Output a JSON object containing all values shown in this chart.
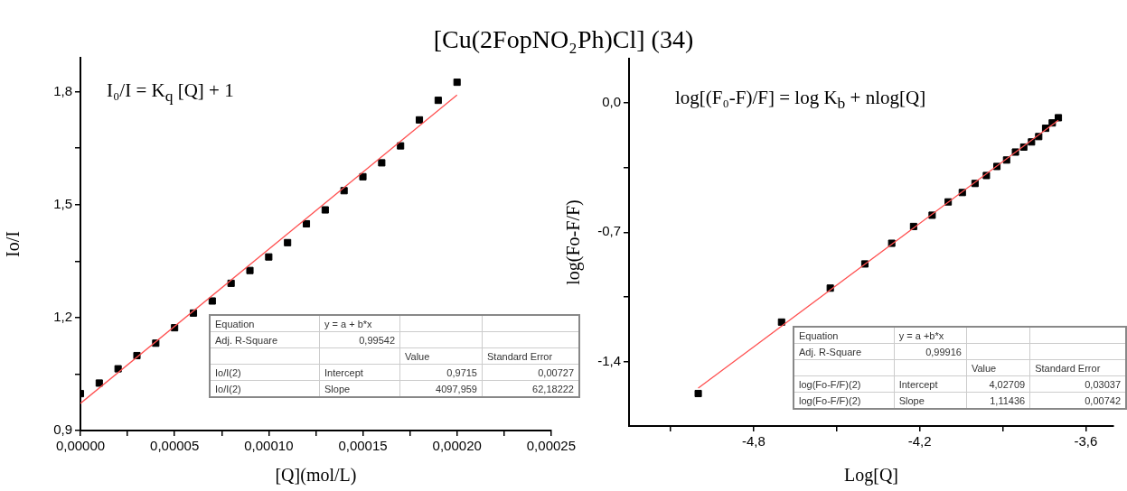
{
  "chart_data": [
    {
      "type": "scatter",
      "title": "[Cu(2FopNO₂Ph)Cl] (34)",
      "xlabel": "[Q](mol/L)",
      "ylabel": "Io/I",
      "marker": "square",
      "grid": false,
      "legend": false,
      "xlim": [
        0,
        0.00025
      ],
      "ylim": [
        0.9,
        1.89
      ],
      "xticks": [
        {
          "value": 0,
          "label": "0,00000"
        },
        {
          "value": 2.5e-05,
          "label": null
        },
        {
          "value": 5e-05,
          "label": "0,00005"
        },
        {
          "value": 7.5e-05,
          "label": null
        },
        {
          "value": 0.0001,
          "label": "0,00010"
        },
        {
          "value": 0.000125,
          "label": null
        },
        {
          "value": 0.00015,
          "label": "0,00015"
        },
        {
          "value": 0.000175,
          "label": null
        },
        {
          "value": 0.0002,
          "label": "0,00020"
        },
        {
          "value": 0.000225,
          "label": null
        },
        {
          "value": 0.00025,
          "label": "0,00025"
        }
      ],
      "yticks": [
        {
          "value": 0.9,
          "label": "0,9"
        },
        {
          "value": 1.05,
          "label": null
        },
        {
          "value": 1.2,
          "label": "1,2"
        },
        {
          "value": 1.35,
          "label": null
        },
        {
          "value": 1.5,
          "label": "1,5"
        },
        {
          "value": 1.65,
          "label": null
        },
        {
          "value": 1.8,
          "label": "1,8"
        }
      ],
      "series": [
        {
          "color": "#000000",
          "x": [
            0,
            1e-05,
            2e-05,
            3e-05,
            4e-05,
            5e-05,
            6e-05,
            7e-05,
            8e-05,
            9e-05,
            0.0001,
            0.00011,
            0.00012,
            0.00013,
            0.00014,
            0.00015,
            0.00016,
            0.00017,
            0.00018,
            0.00019,
            0.0002
          ],
          "values": [
            0.998,
            1.026,
            1.064,
            1.099,
            1.132,
            1.173,
            1.212,
            1.244,
            1.291,
            1.325,
            1.361,
            1.399,
            1.449,
            1.486,
            1.537,
            1.574,
            1.611,
            1.656,
            1.725,
            1.777,
            1.825
          ]
        },
        {
          "type": "line",
          "color": "#ff5050",
          "marker": "none",
          "x": [
            0,
            0.0002
          ],
          "values": [
            0.972,
            1.791
          ]
        }
      ],
      "annotations": [
        "I₀/I = K$_{q}$ [Q] + 1",
        "Equation",
        "y = a + b*x",
        "Adj. R-Square",
        "0,99542",
        "Value",
        "Standard Error",
        "Io/I(2)",
        "Intercept",
        "0,9715",
        "0,00727",
        "Io/I(2)",
        "Slope",
        "4097,959",
        "62,18222"
      ]
    },
    {
      "type": "scatter",
      "xlabel": "Log[Q]",
      "ylabel": "log(Fo-F/F)",
      "marker": "square",
      "grid": false,
      "legend": false,
      "xlim": [
        -5.25,
        -3.5
      ],
      "ylim": [
        -1.75,
        0.24
      ],
      "xticks": [
        {
          "value": -5.1,
          "label": null
        },
        {
          "value": -4.8,
          "label": "-4,8"
        },
        {
          "value": -4.5,
          "label": null
        },
        {
          "value": -4.2,
          "label": "-4,2"
        },
        {
          "value": -3.9,
          "label": null
        },
        {
          "value": -3.6,
          "label": "-3,6"
        }
      ],
      "yticks": [
        {
          "value": -1.4,
          "label": "-1,4"
        },
        {
          "value": -1.05,
          "label": null
        },
        {
          "value": -0.7,
          "label": "-0,7"
        },
        {
          "value": -0.35,
          "label": null
        },
        {
          "value": 0,
          "label": "0,0"
        }
      ],
      "series": [
        {
          "color": "#000000",
          "x": [
            -5.0,
            -4.699,
            -4.523,
            -4.398,
            -4.301,
            -4.222,
            -4.155,
            -4.097,
            -4.046,
            -4.0,
            -3.959,
            -3.921,
            -3.886,
            -3.854,
            -3.824,
            -3.796,
            -3.77,
            -3.745,
            -3.721,
            -3.699
          ],
          "values": [
            -1.574,
            -1.187,
            -1.003,
            -0.872,
            -0.76,
            -0.669,
            -0.608,
            -0.536,
            -0.485,
            -0.436,
            -0.393,
            -0.344,
            -0.309,
            -0.266,
            -0.239,
            -0.211,
            -0.182,
            -0.137,
            -0.108,
            -0.08
          ]
        },
        {
          "type": "line",
          "color": "#ff5050",
          "marker": "none",
          "x": [
            -5.0,
            -3.699
          ],
          "values": [
            -1.545,
            -0.094
          ]
        }
      ],
      "annotations": [
        "log[(F₀-F)/F] = log K$_{b}$ + nlog[Q]",
        "Equation",
        "y = a +b*x",
        "Adj. R-Square",
        "0,99916",
        "Value",
        "Standard Error",
        "log(Fo-F/F)(2)",
        "Intercept",
        "4,02709",
        "0,03037",
        "log(Fo-F/F)(2)",
        "Slope",
        "1,11436",
        "0,00742"
      ]
    }
  ]
}
